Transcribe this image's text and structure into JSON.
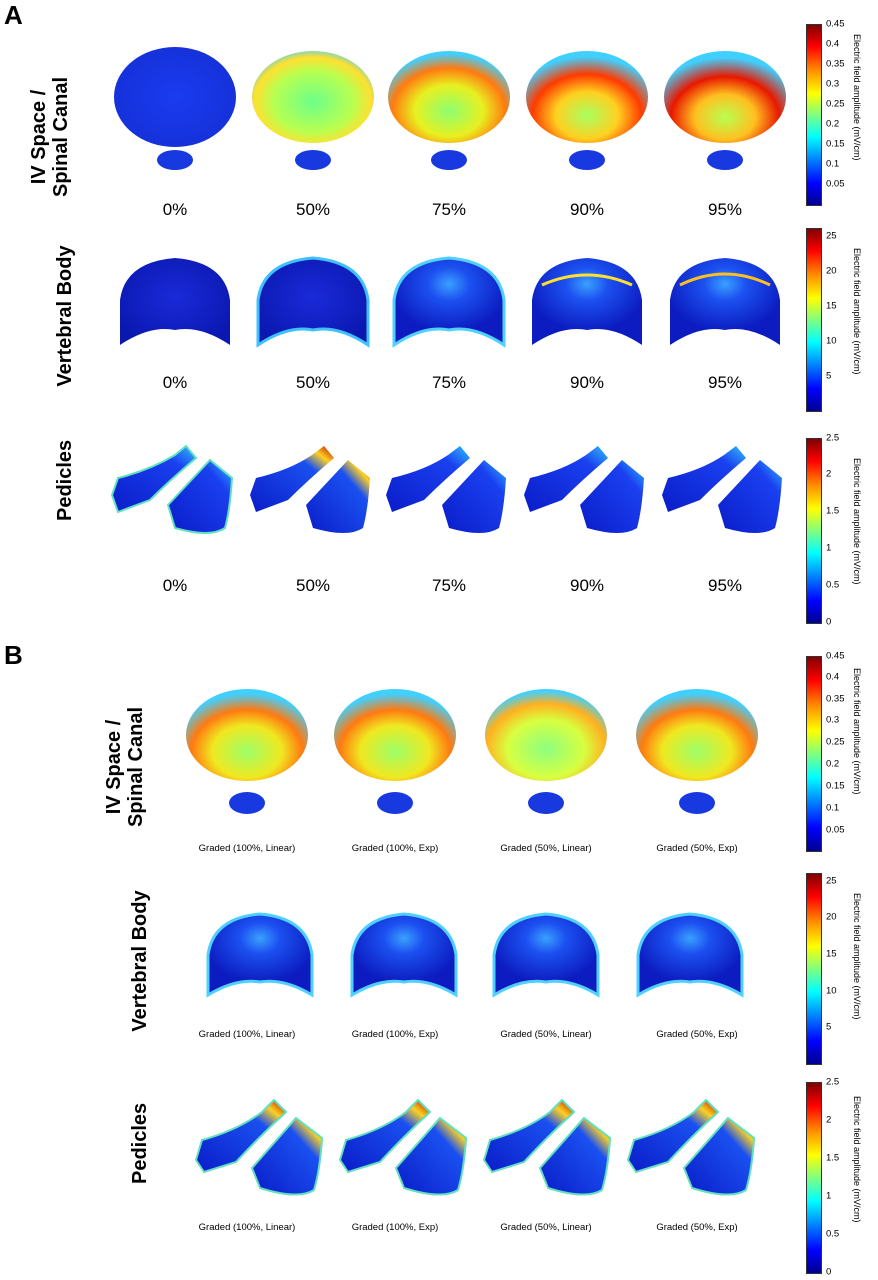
{
  "panels": [
    {
      "letter": "A",
      "rows": [
        {
          "title_line1": "IV Space /",
          "title_line2": "Spinal Canal",
          "labels": [
            "0%",
            "50%",
            "75%",
            "90%",
            "95%"
          ],
          "colorbar": {
            "title": "Electric field amplitude (mV/cm)",
            "ticks": [
              "0.45",
              "0.4",
              "0.35",
              "0.3",
              "0.25",
              "0.2",
              "0.15",
              "0.1",
              "0.05"
            ]
          }
        },
        {
          "title_line1": "Vertebral Body",
          "title_line2": "",
          "labels": [
            "0%",
            "50%",
            "75%",
            "90%",
            "95%"
          ],
          "colorbar": {
            "title": "Electric field amplitude (mV/cm)",
            "ticks": [
              "25",
              "20",
              "15",
              "10",
              "5"
            ]
          }
        },
        {
          "title_line1": "Pedicles",
          "title_line2": "",
          "labels": [
            "0%",
            "50%",
            "75%",
            "90%",
            "95%"
          ],
          "colorbar": {
            "title": "Electric field amplitude (mV/cm)",
            "ticks": [
              "2.5",
              "2",
              "1.5",
              "1",
              "0.5",
              "0"
            ]
          }
        }
      ]
    },
    {
      "letter": "B",
      "rows": [
        {
          "title_line1": "IV Space /",
          "title_line2": "Spinal Canal",
          "labels": [
            "Graded (100%, Linear)",
            "Graded (100%, Exp)",
            "Graded (50%, Linear)",
            "Graded (50%, Exp)"
          ],
          "colorbar": {
            "title": "Electric field amplitude (mV/cm)",
            "ticks": [
              "0.45",
              "0.4",
              "0.35",
              "0.3",
              "0.25",
              "0.2",
              "0.15",
              "0.1",
              "0.05"
            ]
          }
        },
        {
          "title_line1": "Vertebral Body",
          "title_line2": "",
          "labels": [
            "Graded (100%, Linear)",
            "Graded (100%, Exp)",
            "Graded (50%, Linear)",
            "Graded (50%, Exp)"
          ],
          "colorbar": {
            "title": "Electric field amplitude (mV/cm)",
            "ticks": [
              "25",
              "20",
              "15",
              "10",
              "5"
            ]
          }
        },
        {
          "title_line1": "Pedicles",
          "title_line2": "",
          "labels": [
            "Graded (100%, Linear)",
            "Graded (100%, Exp)",
            "Graded (50%, Linear)",
            "Graded (50%, Exp)"
          ],
          "colorbar": {
            "title": "Electric field amplitude (mV/cm)",
            "ticks": [
              "2.5",
              "2",
              "1.5",
              "1",
              "0.5",
              "0"
            ]
          }
        }
      ]
    }
  ],
  "colormap": "jet",
  "colors": {
    "low": "#0000cc",
    "mid": "#7fff7f",
    "high": "#ff0000"
  }
}
